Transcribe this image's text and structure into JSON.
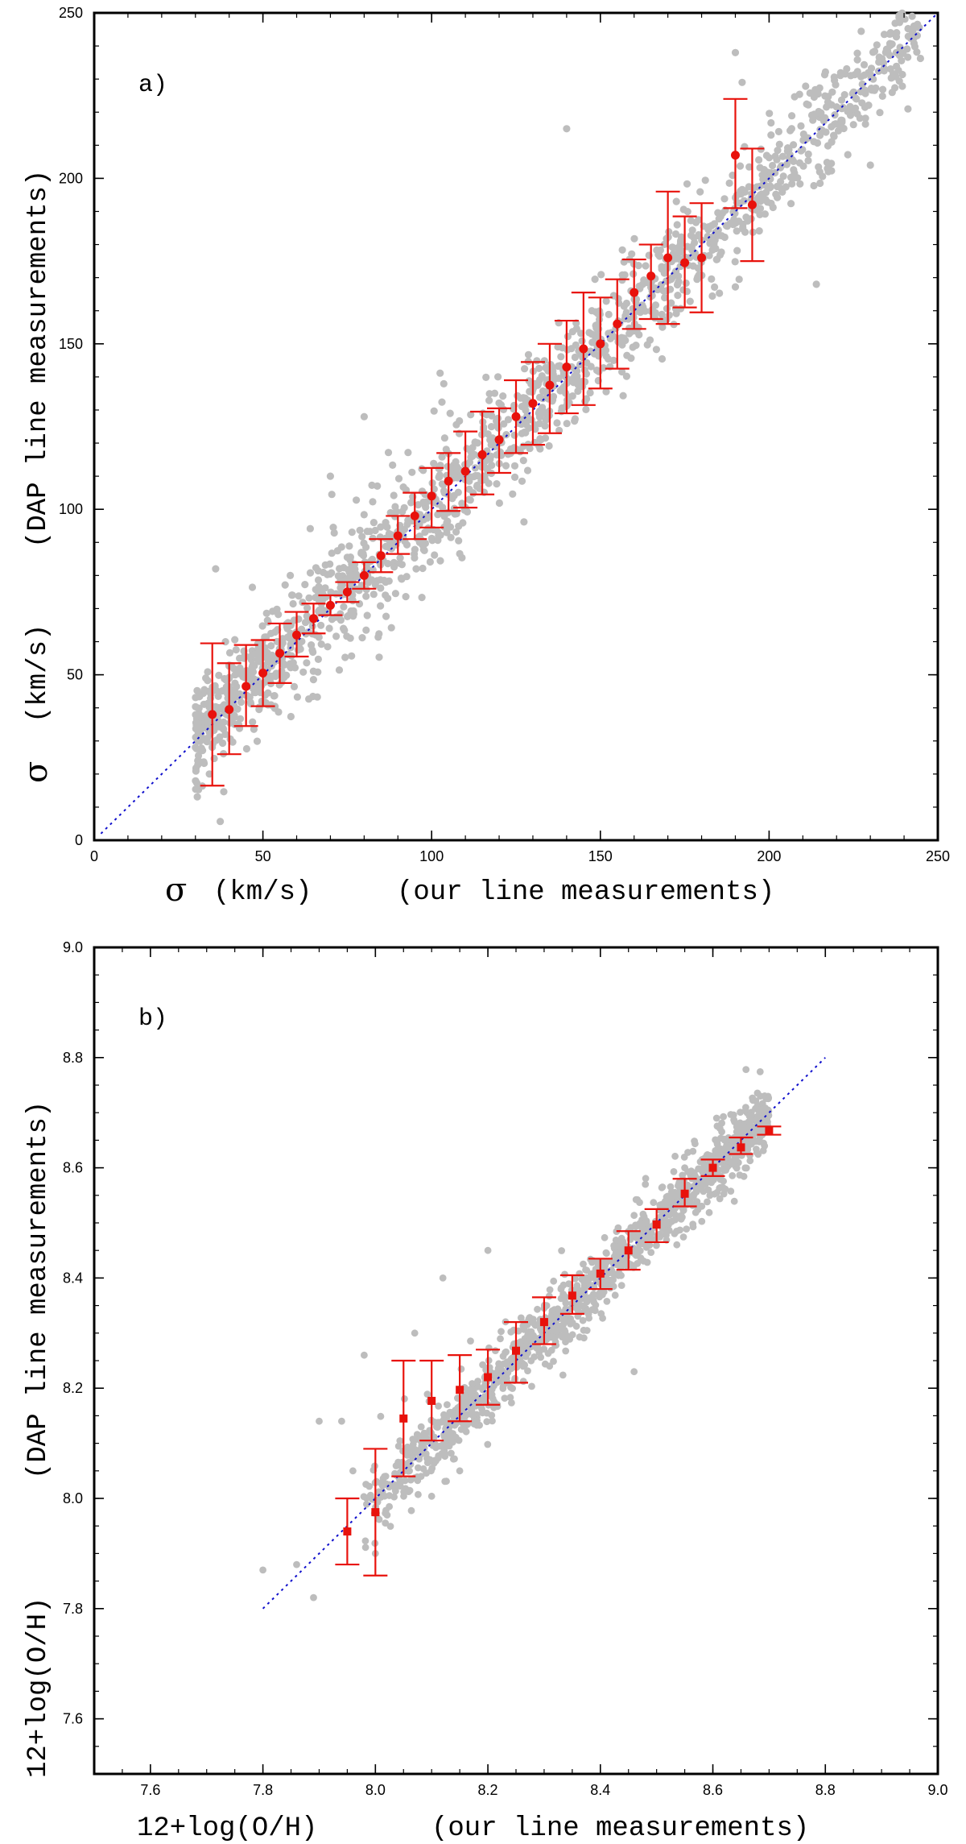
{
  "colors": {
    "scatter": "#bdbdbd",
    "binned": "#e8120c",
    "one_to_one": "#1010cc",
    "frame": "#000000"
  },
  "chart_data": [
    {
      "type": "scatter",
      "panel_label": "a)",
      "title": "",
      "xlabel_symbol": "σ",
      "xlabel": "(km/s)",
      "xlabel_note": "(our line measurements)",
      "ylabel_symbol": "σ",
      "ylabel": "(km/s)",
      "ylabel_note": "(DAP line measurements)",
      "xlim": [
        0,
        250
      ],
      "ylim": [
        0,
        250
      ],
      "xticks": [
        0,
        50,
        100,
        150,
        200,
        250
      ],
      "yticks": [
        0,
        50,
        100,
        150,
        200,
        250
      ],
      "xtick_labels": [
        "0",
        "50",
        "100",
        "150",
        "200",
        "250"
      ],
      "ytick_labels": [
        "0",
        "50",
        "100",
        "150",
        "200",
        "250"
      ],
      "minor_step": 10,
      "reference_line": {
        "x": [
          2,
          250
        ],
        "y": [
          2,
          250
        ],
        "style": "dotted"
      },
      "scatter_cloud": {
        "count": 1600,
        "x_range": [
          30,
          245
        ],
        "relation": "y ≈ x",
        "scatter_sd": 8,
        "outliers": [
          [
            36,
            82
          ],
          [
            70,
            110
          ],
          [
            80,
            128
          ],
          [
            140,
            215
          ],
          [
            190,
            238
          ],
          [
            192,
            229
          ],
          [
            214,
            168
          ],
          [
            230,
            204
          ],
          [
            236,
            244
          ],
          [
            215,
            202
          ]
        ]
      },
      "series": [
        {
          "name": "binned means",
          "marker": "circle",
          "x": [
            35,
            40,
            45,
            50,
            55,
            60,
            65,
            70,
            75,
            80,
            85,
            90,
            95,
            100,
            105,
            110,
            115,
            120,
            125,
            130,
            135,
            140,
            145,
            150,
            155,
            160,
            165,
            170,
            175,
            180,
            190,
            195
          ],
          "y": [
            38,
            39.5,
            46.5,
            50.5,
            56.5,
            62,
            67,
            71,
            75,
            80,
            86,
            92,
            98,
            104,
            108.5,
            111.5,
            116.5,
            121,
            128,
            132,
            137.5,
            143,
            148.5,
            150,
            156,
            165.5,
            170.5,
            176,
            174.5,
            176,
            207,
            192
          ],
          "err_low": [
            16.5,
            26,
            34.5,
            40.5,
            47.5,
            55.5,
            62.5,
            68,
            72,
            76,
            81,
            86.5,
            91,
            94.5,
            99.5,
            100.5,
            104.5,
            111,
            117,
            119.5,
            123,
            129,
            131.5,
            136.5,
            142.5,
            154.5,
            157.5,
            156,
            161,
            159.5,
            191,
            175
          ],
          "err_high": [
            59.5,
            53.5,
            59,
            60.5,
            65.5,
            69,
            71.5,
            74,
            78,
            84,
            91,
            98,
            105,
            112.5,
            117,
            123.5,
            129.5,
            130.5,
            139,
            144.5,
            150,
            157,
            165.5,
            164,
            169.5,
            175.5,
            180,
            196,
            188.5,
            192.5,
            224,
            209
          ]
        }
      ]
    },
    {
      "type": "scatter",
      "panel_label": "b)",
      "title": "",
      "xlabel": "12+log(O/H)",
      "xlabel_note": "(our line measurements)",
      "ylabel": "12+log(O/H)",
      "ylabel_note": "(DAP line measurements)",
      "xlim": [
        7.5,
        9.0
      ],
      "ylim": [
        7.5,
        9.0
      ],
      "xticks": [
        7.6,
        7.8,
        8.0,
        8.2,
        8.4,
        8.6,
        8.8,
        9.0
      ],
      "yticks": [
        7.6,
        7.8,
        8.0,
        8.2,
        8.4,
        8.6,
        8.8,
        9.0
      ],
      "xtick_labels": [
        "7.6",
        "7.8",
        "8.0",
        "8.2",
        "8.4",
        "8.6",
        "8.8",
        "9.0"
      ],
      "ytick_labels": [
        "7.6",
        "7.8",
        "8.0",
        "8.2",
        "8.4",
        "8.6",
        "8.8",
        "9.0"
      ],
      "minor_step": 0.05,
      "reference_line": {
        "x": [
          7.8,
          8.8
        ],
        "y": [
          7.8,
          8.8
        ],
        "style": "dotted"
      },
      "scatter_cloud": {
        "count": 1300,
        "x_range": [
          7.85,
          8.7
        ],
        "relation": "y ≈ x",
        "scatter_sd": 0.03,
        "outliers": [
          [
            7.8,
            7.87
          ],
          [
            7.86,
            7.88
          ],
          [
            7.89,
            7.82
          ],
          [
            7.9,
            8.14
          ],
          [
            7.94,
            8.14
          ],
          [
            7.96,
            8.05
          ],
          [
            8.07,
            8.3
          ],
          [
            8.12,
            8.4
          ],
          [
            8.15,
            8.05
          ],
          [
            8.2,
            8.45
          ],
          [
            8.46,
            8.23
          ],
          [
            8.48,
            8.57
          ],
          [
            8.55,
            8.6
          ],
          [
            8.33,
            8.38
          ],
          [
            7.98,
            8.26
          ],
          [
            8.0,
            7.9
          ]
        ]
      },
      "series": [
        {
          "name": "binned means",
          "marker": "square",
          "x": [
            7.95,
            8.0,
            8.05,
            8.1,
            8.15,
            8.2,
            8.25,
            8.3,
            8.35,
            8.4,
            8.45,
            8.5,
            8.55,
            8.6,
            8.65,
            8.7
          ],
          "y": [
            7.94,
            7.975,
            8.145,
            8.177,
            8.197,
            8.22,
            8.268,
            8.32,
            8.368,
            8.408,
            8.45,
            8.497,
            8.553,
            8.6,
            8.637,
            8.668
          ],
          "err_low": [
            7.88,
            7.86,
            8.04,
            8.105,
            8.14,
            8.17,
            8.21,
            8.28,
            8.335,
            8.38,
            8.415,
            8.465,
            8.53,
            8.585,
            8.625,
            8.66
          ],
          "err_high": [
            8.0,
            8.09,
            8.25,
            8.25,
            8.26,
            8.27,
            8.32,
            8.365,
            8.405,
            8.435,
            8.485,
            8.525,
            8.58,
            8.615,
            8.655,
            8.675
          ]
        }
      ]
    }
  ]
}
